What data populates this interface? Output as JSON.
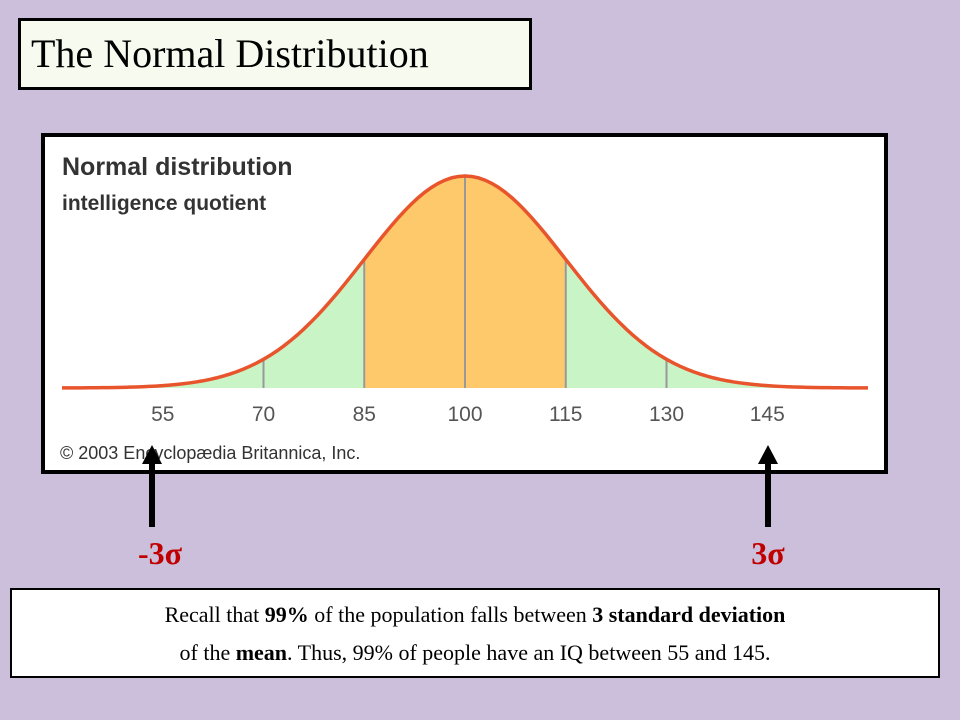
{
  "slide": {
    "title": "The Normal Distribution",
    "left_label": "-3σ",
    "right_label": "3σ",
    "note": [
      "Recall that ",
      "99%",
      " of the population falls between ",
      "3 standard deviation",
      "of the ",
      "mean",
      ". Thus, 99% of people have an IQ between 55 and 145."
    ]
  },
  "chart_data": {
    "type": "normal",
    "title": "Normal distribution",
    "subtitle": "intelligence quotient",
    "credit": "© 2003 Encyclopædia Britannica, Inc.",
    "xlim": [
      40,
      160
    ],
    "xticks": [
      55,
      70,
      85,
      100,
      115,
      130,
      145
    ],
    "colors": {
      "inner": "#fdc96a",
      "outer": "#c9f4c6",
      "curve": "#e8542c",
      "divider": "#999999"
    }
  }
}
